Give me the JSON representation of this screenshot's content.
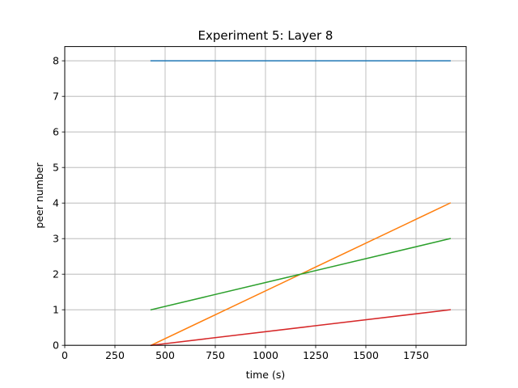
{
  "chart_data": {
    "type": "line",
    "title": "Experiment 5: Layer 8",
    "xlabel": "time (s)",
    "ylabel": "peer number",
    "xlim": [
      0,
      2000
    ],
    "ylim": [
      0,
      8.4
    ],
    "xticks": [
      0,
      250,
      500,
      750,
      1000,
      1250,
      1500,
      1750
    ],
    "yticks": [
      0,
      1,
      2,
      3,
      4,
      5,
      6,
      7,
      8
    ],
    "grid": true,
    "legend": "none",
    "series": [
      {
        "color": "#1f77b4",
        "x": [
          430,
          1920
        ],
        "y": [
          8,
          8
        ]
      },
      {
        "color": "#ff7f0e",
        "x": [
          430,
          1920
        ],
        "y": [
          0,
          4
        ]
      },
      {
        "color": "#2ca02c",
        "x": [
          430,
          1920
        ],
        "y": [
          1,
          3
        ]
      },
      {
        "color": "#d62728",
        "x": [
          430,
          1920
        ],
        "y": [
          0,
          1
        ]
      }
    ]
  }
}
